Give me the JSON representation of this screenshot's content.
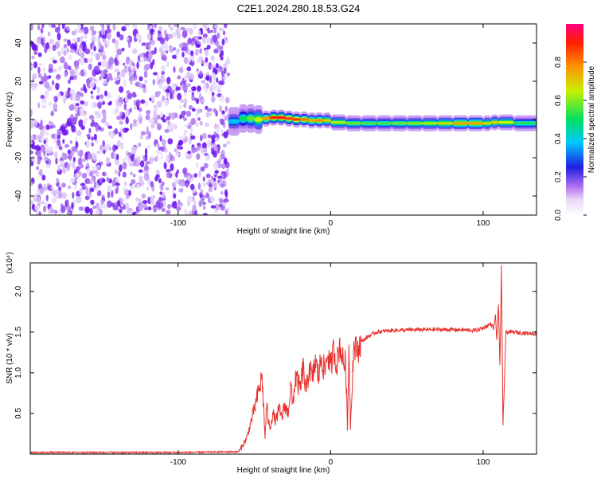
{
  "title": "C2E1.2024.280.18.53.G24",
  "colors": {
    "snr_line": "#e8302c",
    "axis": "#000000",
    "scatter": "#7a22ee"
  },
  "chart_data": [
    {
      "type": "heatmap",
      "xlabel": "Height of straight line (km)",
      "ylabel": "Frequency (Hz)",
      "xlim": [
        -197,
        135
      ],
      "ylim": [
        -50,
        50
      ],
      "xticks": [
        -100,
        0,
        100
      ],
      "yticks": [
        -40,
        -20,
        0,
        20,
        40
      ],
      "colorbar": {
        "label": "Normalized spectral amplitude",
        "range": [
          0,
          1
        ],
        "ticks": [
          0.0,
          0.2,
          0.4,
          0.6,
          0.8
        ]
      },
      "noise_region_x": [
        -197,
        -67
      ],
      "ridge": {
        "x": [
          -67,
          -60,
          -55,
          -50,
          -45,
          -40,
          -35,
          -30,
          -25,
          -20,
          -15,
          -10,
          -5,
          0,
          10,
          20,
          30,
          40,
          50,
          60,
          70,
          80,
          90,
          100,
          105,
          110,
          120,
          135
        ],
        "freq": [
          -2,
          0,
          1,
          0,
          0,
          1,
          1,
          1,
          0,
          0,
          0,
          -1,
          0,
          -1,
          -2,
          -2,
          -2,
          -2,
          -2,
          -2,
          -2,
          -2,
          -2,
          -2,
          -2,
          -1,
          -2,
          -2
        ],
        "amplitude": [
          0.3,
          0.45,
          0.55,
          0.6,
          0.7,
          0.85,
          0.95,
          0.9,
          0.85,
          0.9,
          0.7,
          0.8,
          0.75,
          0.65,
          0.6,
          0.55,
          0.55,
          0.55,
          0.6,
          0.6,
          0.65,
          0.7,
          0.8,
          0.7,
          0.65,
          0.75,
          0.55,
          0.5
        ]
      }
    },
    {
      "type": "line",
      "xlabel": "Height of straight line (km)",
      "ylabel": "SNR (10 * v/v)",
      "y_multiplier": "(x10⁴)",
      "xlim": [
        -197,
        135
      ],
      "ylim": [
        0,
        2.35
      ],
      "xticks": [
        -100,
        0,
        100
      ],
      "yticks": [
        0.5,
        1.0,
        1.5,
        2.0
      ],
      "series": [
        {
          "x": [
            -197,
            -150,
            -100,
            -60,
            -55,
            -50,
            -45,
            -43,
            -42,
            -40,
            -38,
            -36,
            -34,
            -32,
            -30,
            -28,
            -26,
            -25,
            -23,
            -20,
            -18,
            -16,
            -14,
            -12,
            -10,
            -8,
            -6,
            -4,
            -2,
            0,
            2,
            4,
            6,
            8,
            10,
            11,
            12,
            13,
            15,
            18,
            20,
            25,
            30,
            40,
            60,
            80,
            95,
            100,
            105,
            107,
            108,
            109,
            110,
            111,
            112,
            113,
            115,
            120,
            125,
            135
          ],
          "y": [
            0.02,
            0.02,
            0.02,
            0.03,
            0.2,
            0.55,
            0.95,
            0.2,
            0.6,
            0.3,
            0.5,
            0.4,
            0.55,
            0.45,
            0.6,
            0.5,
            0.85,
            0.6,
            0.95,
            0.8,
            1.05,
            0.75,
            1.1,
            0.9,
            1.15,
            0.95,
            1.2,
            1.0,
            1.25,
            1.05,
            1.3,
            1.1,
            1.35,
            1.15,
            1.1,
            0.28,
            1.35,
            0.35,
            1.3,
            1.28,
            1.38,
            1.45,
            1.5,
            1.52,
            1.53,
            1.53,
            1.52,
            1.55,
            1.6,
            1.55,
            1.7,
            1.4,
            1.85,
            1.1,
            2.3,
            0.35,
            1.5,
            1.5,
            1.49,
            1.48
          ]
        }
      ]
    }
  ]
}
